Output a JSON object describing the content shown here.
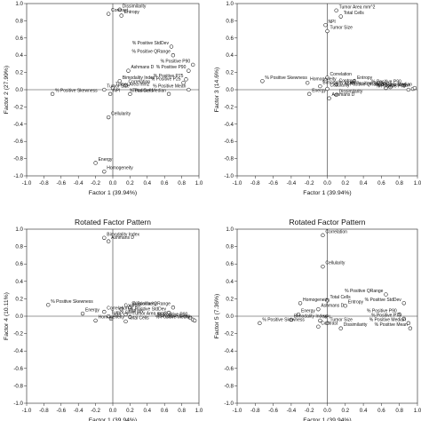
{
  "chart_data": [
    {
      "type": "scatter",
      "title": "",
      "xlabel": "Factor 1 (39.94%)",
      "ylabel": "Factor 2 (27.99%)",
      "xlim": [
        -1.0,
        1.0
      ],
      "ylim": [
        -1.0,
        1.0
      ],
      "ticks": [
        "-1.0",
        "-0.8",
        "-0.6",
        "-0.4",
        "-0.2",
        "0.0",
        "0.2",
        "0.4",
        "0.6",
        "0.8",
        "1.0"
      ],
      "points": [
        {
          "label": "Dissimilarity",
          "x": 0.08,
          "y": 0.93
        },
        {
          "label": "Contrast",
          "x": -0.05,
          "y": 0.88
        },
        {
          "label": "Entropy",
          "x": 0.1,
          "y": 0.86
        },
        {
          "label": "% Positive StdDev",
          "x": 0.68,
          "y": 0.5
        },
        {
          "label": "% Positive QRange",
          "x": 0.7,
          "y": 0.4
        },
        {
          "label": "% Positive P90",
          "x": 0.93,
          "y": 0.29
        },
        {
          "label": "Ashmans D",
          "x": 0.18,
          "y": 0.22
        },
        {
          "label": "Bimodality Index",
          "x": 0.08,
          "y": 0.1
        },
        {
          "label": "Correlation",
          "x": 0.15,
          "y": 0.05
        },
        {
          "label": "% Positive P90",
          "x": 0.88,
          "y": 0.22
        },
        {
          "label": "% Positive P75",
          "x": 0.85,
          "y": 0.12
        },
        {
          "label": "% Positive P25",
          "x": 0.82,
          "y": 0.08
        },
        {
          "label": "Tumor Area mm2",
          "x": 0.0,
          "y": 0.02
        },
        {
          "label": "Tumor Size",
          "x": -0.1,
          "y": 0.0
        },
        {
          "label": "NPI",
          "x": -0.03,
          "y": -0.05
        },
        {
          "label": "Total Cells",
          "x": 0.2,
          "y": -0.05
        },
        {
          "label": "% Positive Mean",
          "x": 0.88,
          "y": 0.0
        },
        {
          "label": "% Positive Median",
          "x": 0.65,
          "y": -0.05
        },
        {
          "label": "% Positive Skewness",
          "x": -0.7,
          "y": -0.05
        },
        {
          "label": "Cellularity",
          "x": -0.05,
          "y": -0.32
        },
        {
          "label": "Energy",
          "x": -0.2,
          "y": -0.85
        },
        {
          "label": "Homogeneity",
          "x": -0.1,
          "y": -0.95
        }
      ]
    },
    {
      "type": "scatter",
      "title": "",
      "xlabel": "Factor 1 (39.94%)",
      "ylabel": "Factor 3 (14.6%)",
      "xlim": [
        -1.0,
        1.0
      ],
      "ylim": [
        -1.0,
        1.0
      ],
      "ticks": [
        "-1.0",
        "-0.8",
        "-0.6",
        "-0.4",
        "-0.2",
        "0.0",
        "0.2",
        "0.4",
        "0.6",
        "0.8",
        "1.0"
      ],
      "points": [
        {
          "label": "Tumor Area mm^2",
          "x": 0.1,
          "y": 0.92
        },
        {
          "label": "Total Cells",
          "x": 0.15,
          "y": 0.85
        },
        {
          "label": "NPI",
          "x": -0.02,
          "y": 0.75
        },
        {
          "label": "Tumor Size",
          "x": 0.0,
          "y": 0.68
        },
        {
          "label": "Correlation",
          "x": 0.0,
          "y": 0.14
        },
        {
          "label": "Entropy",
          "x": 0.3,
          "y": 0.1
        },
        {
          "label": "% Positive Skewness",
          "x": -0.72,
          "y": 0.1
        },
        {
          "label": "Homogeneity",
          "x": -0.22,
          "y": 0.08
        },
        {
          "label": "Contrast",
          "x": 0.1,
          "y": 0.06
        },
        {
          "label": "% Positive P90",
          "x": 0.85,
          "y": 0.05
        },
        {
          "label": "Bimodality Index",
          "x": -0.08,
          "y": 0.04
        },
        {
          "label": "% Positive StdDev",
          "x": 0.7,
          "y": 0.03
        },
        {
          "label": "% Positive QRange",
          "x": 0.65,
          "y": 0.02
        },
        {
          "label": "Cellularity",
          "x": 0.0,
          "y": 0.01
        },
        {
          "label": "Energy",
          "x": -0.2,
          "y": -0.05
        },
        {
          "label": "Dissimilarity",
          "x": 0.1,
          "y": -0.06
        },
        {
          "label": "Ashmans D",
          "x": 0.02,
          "y": -0.1
        },
        {
          "label": "% Positive P75",
          "x": 0.9,
          "y": 0.0
        },
        {
          "label": "% Positive Mean",
          "x": 0.95,
          "y": 0.01
        },
        {
          "label": "% Positive Median",
          "x": 0.97,
          "y": 0.02
        }
      ]
    },
    {
      "type": "scatter",
      "title": "Rotated Factor Pattern",
      "xlabel": "Factor 1 (39.94%)",
      "ylabel": "Factor 4 (10.11%)",
      "xlim": [
        -1.0,
        1.0
      ],
      "ylim": [
        -1.0,
        1.0
      ],
      "ticks": [
        "-1.0",
        "-0.8",
        "-0.6",
        "-0.4",
        "-0.2",
        "0.0",
        "0.2",
        "0.4",
        "0.6",
        "0.8",
        "1.0"
      ],
      "points": [
        {
          "label": "Bimodality Index",
          "x": -0.1,
          "y": 0.9
        },
        {
          "label": "Ashmans D",
          "x": -0.05,
          "y": 0.86
        },
        {
          "label": "% Positive Skewness",
          "x": -0.75,
          "y": 0.13
        },
        {
          "label": "Dissimilarity",
          "x": 0.2,
          "y": 0.1
        },
        {
          "label": "% Positive QRange",
          "x": 0.7,
          "y": 0.1
        },
        {
          "label": "Contrast",
          "x": 0.1,
          "y": 0.08
        },
        {
          "label": "Correlation",
          "x": -0.1,
          "y": 0.05
        },
        {
          "label": "Energy",
          "x": -0.35,
          "y": 0.03
        },
        {
          "label": "Entropy",
          "x": 0.15,
          "y": 0.02
        },
        {
          "label": "% Positive StdDev",
          "x": 0.65,
          "y": 0.04
        },
        {
          "label": "Tumor Size",
          "x": -0.05,
          "y": 0.0
        },
        {
          "label": "Tumor Area mm2",
          "x": 0.2,
          "y": -0.01
        },
        {
          "label": "NPI",
          "x": -0.02,
          "y": -0.03
        },
        {
          "label": "Homogeneity",
          "x": -0.2,
          "y": -0.05
        },
        {
          "label": "Total Cells",
          "x": 0.15,
          "y": -0.06
        },
        {
          "label": "% Positive P90",
          "x": 0.9,
          "y": -0.02
        },
        {
          "label": "% Positive Mean",
          "x": 0.93,
          "y": -0.04
        },
        {
          "label": "% Positive Median",
          "x": 0.95,
          "y": -0.05
        }
      ]
    },
    {
      "type": "scatter",
      "title": "Rotated Factor Pattern",
      "xlabel": "Factor 1 (39.94%)",
      "ylabel": "Factor 5 (7.36%)",
      "xlim": [
        -1.0,
        1.0
      ],
      "ylim": [
        -1.0,
        1.0
      ],
      "ticks": [
        "-1.0",
        "-0.8",
        "-0.6",
        "-0.4",
        "-0.2",
        "0.0",
        "0.2",
        "0.4",
        "0.6",
        "0.8",
        "1.0"
      ],
      "points": [
        {
          "label": "Correlation",
          "x": -0.05,
          "y": 0.93
        },
        {
          "label": "Cellularity",
          "x": -0.05,
          "y": 0.57
        },
        {
          "label": "% Positive QRange",
          "x": 0.65,
          "y": 0.25
        },
        {
          "label": "Total Cells",
          "x": 0.0,
          "y": 0.18
        },
        {
          "label": "Homogeneity",
          "x": -0.3,
          "y": 0.15
        },
        {
          "label": "Entropy",
          "x": 0.2,
          "y": 0.12
        },
        {
          "label": "% Positive StdDev",
          "x": 0.85,
          "y": 0.15
        },
        {
          "label": "Ashmans D",
          "x": -0.1,
          "y": 0.08
        },
        {
          "label": "Energy",
          "x": -0.32,
          "y": 0.02
        },
        {
          "label": "Bimodality Index",
          "x": -0.4,
          "y": -0.04
        },
        {
          "label": "NPI",
          "x": -0.08,
          "y": -0.05
        },
        {
          "label": "% Positive Skewness",
          "x": -0.75,
          "y": -0.08
        },
        {
          "label": "Tumor Size",
          "x": 0.0,
          "y": -0.08
        },
        {
          "label": "Contrast",
          "x": -0.1,
          "y": -0.12
        },
        {
          "label": "Dissimilarity",
          "x": 0.15,
          "y": -0.14
        },
        {
          "label": "% Positive P90",
          "x": 0.8,
          "y": 0.02
        },
        {
          "label": "% Positive P75",
          "x": 0.85,
          "y": -0.03
        },
        {
          "label": "% Positive Median",
          "x": 0.9,
          "y": -0.08
        },
        {
          "label": "% Positive Mean",
          "x": 0.92,
          "y": -0.14
        }
      ]
    }
  ]
}
